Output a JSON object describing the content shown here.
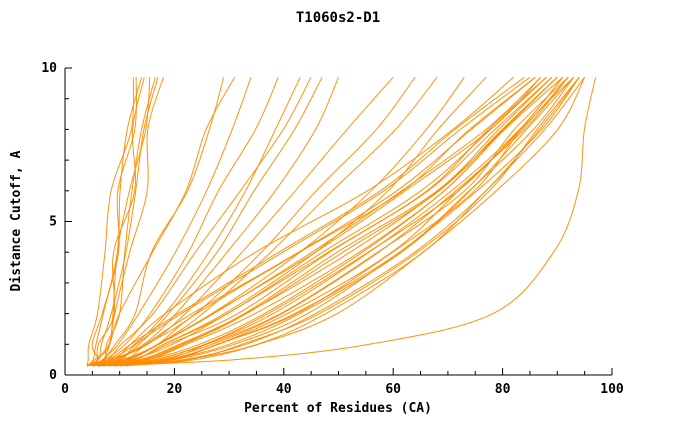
{
  "chart_data": {
    "type": "line",
    "title": "T1060s2-D1",
    "xlabel": "Percent of Residues (CA)",
    "ylabel": "Distance Cutoff, A",
    "xlim": [
      0,
      100
    ],
    "ylim": [
      0,
      10
    ],
    "x_ticks": [
      0,
      20,
      40,
      60,
      80,
      100
    ],
    "y_ticks": [
      0,
      5,
      10
    ],
    "grid": "off",
    "legend": "none",
    "line_color": "#ff8c00",
    "axis_color": "#000000",
    "y_samples": [
      0.3,
      0.5,
      1,
      2,
      4,
      6,
      8,
      9.7
    ],
    "series": [
      [
        4,
        5,
        5.5,
        6.5,
        8,
        9.5,
        11,
        12.5
      ],
      [
        4.5,
        5.5,
        6,
        7,
        9,
        10.5,
        12,
        13
      ],
      [
        4,
        5,
        6,
        7.5,
        9.5,
        11,
        12.5,
        14
      ],
      [
        5,
        6,
        6.5,
        8,
        10,
        12,
        13.5,
        14.5
      ],
      [
        4.5,
        6,
        7,
        8.5,
        10.5,
        12.5,
        14,
        15.5
      ],
      [
        5,
        6.5,
        7.5,
        9,
        11.5,
        13,
        15,
        16.5
      ],
      [
        4,
        5.5,
        6.5,
        8,
        10,
        12.5,
        15,
        17
      ],
      [
        5,
        7,
        8,
        10,
        12,
        14,
        16,
        18
      ],
      [
        5,
        7,
        9,
        12,
        17,
        22,
        26,
        29
      ],
      [
        4,
        6,
        8,
        11,
        16,
        21,
        26,
        31
      ],
      [
        5,
        8,
        10,
        14,
        20,
        25,
        30,
        34
      ],
      [
        4,
        7,
        10,
        15,
        22,
        28,
        34,
        39
      ],
      [
        5,
        8,
        12,
        18,
        26,
        32,
        38,
        43
      ],
      [
        4,
        8,
        11,
        17,
        25,
        32,
        39,
        45
      ],
      [
        6,
        9,
        13,
        20,
        28,
        35,
        42,
        47
      ],
      [
        5,
        9,
        14,
        21,
        30,
        38,
        45,
        50
      ],
      [
        5,
        9,
        14,
        22,
        33,
        42,
        52,
        60
      ],
      [
        6,
        10,
        15,
        24,
        36,
        46,
        56,
        64
      ],
      [
        5,
        10,
        16,
        26,
        38,
        50,
        60,
        68
      ],
      [
        6,
        11,
        17,
        28,
        42,
        55,
        65,
        73
      ],
      [
        6,
        12,
        18,
        30,
        45,
        58,
        68,
        77
      ],
      [
        4,
        8,
        12,
        18,
        35,
        55,
        70,
        82
      ],
      [
        4,
        9,
        13,
        20,
        38,
        57,
        72,
        84
      ],
      [
        5,
        10,
        14,
        22,
        40,
        58,
        73,
        85
      ],
      [
        5,
        10,
        15,
        24,
        42,
        60,
        74,
        86
      ],
      [
        4,
        11,
        16,
        25,
        43,
        61,
        75,
        86
      ],
      [
        5,
        11,
        17,
        26,
        44,
        62,
        76,
        87
      ],
      [
        5,
        12,
        18,
        28,
        46,
        63,
        77,
        87
      ],
      [
        6,
        12,
        18,
        29,
        47,
        64,
        77,
        88
      ],
      [
        6,
        13,
        19,
        30,
        48,
        65,
        78,
        88
      ],
      [
        5,
        13,
        20,
        31,
        49,
        66,
        79,
        89
      ],
      [
        6,
        14,
        21,
        32,
        50,
        67,
        79,
        89
      ],
      [
        6,
        14,
        22,
        33,
        51,
        68,
        80,
        90
      ],
      [
        7,
        15,
        22,
        34,
        52,
        68,
        80,
        90
      ],
      [
        7,
        15,
        23,
        35,
        53,
        69,
        81,
        90
      ],
      [
        6,
        16,
        24,
        36,
        54,
        70,
        81,
        91
      ],
      [
        7,
        16,
        25,
        37,
        55,
        70,
        82,
        91
      ],
      [
        7,
        17,
        25,
        38,
        56,
        71,
        82,
        91
      ],
      [
        8,
        17,
        26,
        39,
        57,
        72,
        83,
        92
      ],
      [
        8,
        18,
        27,
        40,
        58,
        72,
        83,
        92
      ],
      [
        7,
        18,
        28,
        41,
        59,
        73,
        84,
        92
      ],
      [
        8,
        19,
        28,
        42,
        60,
        74,
        84,
        93
      ],
      [
        9,
        19,
        29,
        43,
        61,
        74,
        85,
        93
      ],
      [
        8,
        20,
        30,
        44,
        62,
        75,
        85,
        93
      ],
      [
        9,
        20,
        31,
        45,
        62,
        76,
        86,
        94
      ],
      [
        9,
        21,
        32,
        46,
        63,
        76,
        86,
        94
      ],
      [
        10,
        22,
        33,
        47,
        64,
        77,
        87,
        94
      ],
      [
        10,
        23,
        34,
        48,
        65,
        78,
        88,
        95
      ],
      [
        11,
        24,
        35,
        50,
        66,
        79,
        89,
        95
      ],
      [
        6,
        30,
        55,
        78,
        90,
        93,
        95,
        97
      ]
    ]
  }
}
